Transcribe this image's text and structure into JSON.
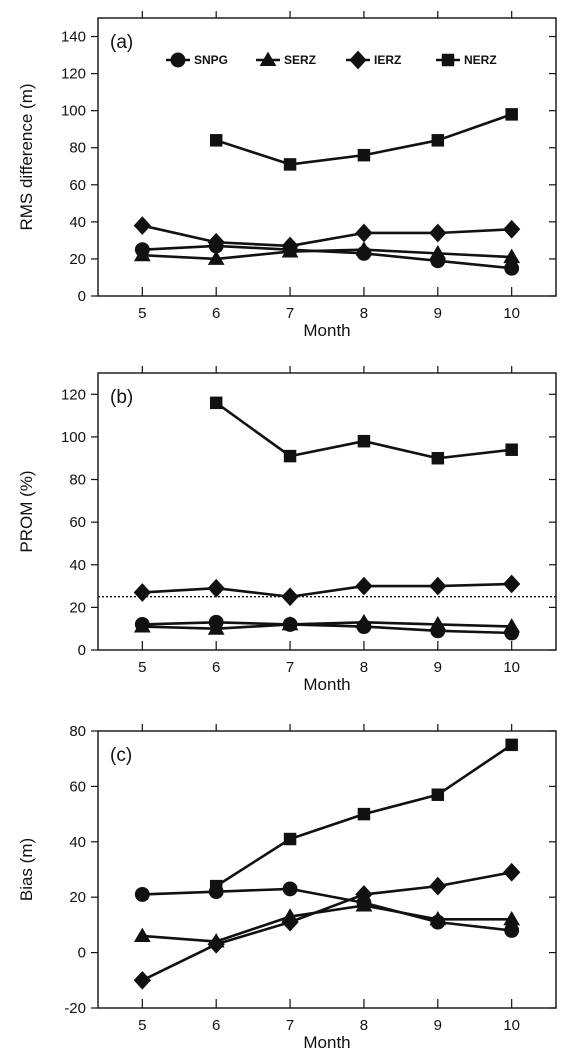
{
  "chart_data": [
    {
      "type": "line",
      "panel_label": "(a)",
      "xlabel": "Month",
      "ylabel": "RMS difference (m)",
      "xlim": [
        4.4,
        10.6
      ],
      "ylim": [
        0,
        150
      ],
      "xticks": [
        5,
        6,
        7,
        8,
        9,
        10
      ],
      "yticks": [
        0,
        20,
        40,
        60,
        80,
        100,
        120,
        140
      ],
      "grid": false,
      "legend": "top",
      "series": [
        {
          "name": "SNPG",
          "marker": "circle",
          "x": [
            5,
            6,
            7,
            8,
            9,
            10
          ],
          "values": [
            25,
            27,
            25,
            23,
            19,
            15
          ]
        },
        {
          "name": "SERZ",
          "marker": "triangle",
          "x": [
            5,
            6,
            7,
            8,
            9,
            10
          ],
          "values": [
            22,
            20,
            24,
            25,
            23,
            21
          ]
        },
        {
          "name": "IERZ",
          "marker": "diamond",
          "x": [
            5,
            6,
            7,
            8,
            9,
            10
          ],
          "values": [
            38,
            29,
            27,
            34,
            34,
            36
          ]
        },
        {
          "name": "NERZ",
          "marker": "square",
          "x": [
            6,
            7,
            8,
            9,
            10
          ],
          "values": [
            84,
            71,
            76,
            84,
            98
          ]
        }
      ]
    },
    {
      "type": "line",
      "panel_label": "(b)",
      "xlabel": "Month",
      "ylabel": "PROM (%)",
      "xlim": [
        4.4,
        10.6
      ],
      "ylim": [
        0,
        130
      ],
      "xticks": [
        5,
        6,
        7,
        8,
        9,
        10
      ],
      "yticks": [
        0,
        20,
        40,
        60,
        80,
        100,
        120
      ],
      "grid": false,
      "reference_line": 25,
      "series": [
        {
          "marker": "circle",
          "x": [
            5,
            6,
            7,
            8,
            9,
            10
          ],
          "values": [
            12,
            13,
            12,
            11,
            9,
            8
          ]
        },
        {
          "marker": "triangle",
          "x": [
            5,
            6,
            7,
            8,
            9,
            10
          ],
          "values": [
            11,
            10,
            12,
            13,
            12,
            11
          ]
        },
        {
          "marker": "diamond",
          "x": [
            5,
            6,
            7,
            8,
            9,
            10
          ],
          "values": [
            27,
            29,
            25,
            30,
            30,
            31
          ]
        },
        {
          "marker": "square",
          "x": [
            6,
            7,
            8,
            9,
            10
          ],
          "values": [
            116,
            91,
            98,
            90,
            94
          ]
        }
      ]
    },
    {
      "type": "line",
      "panel_label": "(c)",
      "xlabel": "Month",
      "ylabel": "Bias (m)",
      "xlim": [
        4.4,
        10.6
      ],
      "ylim": [
        -20,
        80
      ],
      "xticks": [
        5,
        6,
        7,
        8,
        9,
        10
      ],
      "yticks": [
        -20,
        0,
        20,
        40,
        60,
        80
      ],
      "grid": false,
      "series": [
        {
          "marker": "circle",
          "x": [
            5,
            6,
            7,
            8,
            9,
            10
          ],
          "values": [
            21,
            22,
            23,
            18,
            11,
            8
          ]
        },
        {
          "marker": "triangle",
          "x": [
            5,
            6,
            7,
            8,
            9,
            10
          ],
          "values": [
            6,
            4,
            13,
            17,
            12,
            12
          ]
        },
        {
          "marker": "diamond",
          "x": [
            5,
            6,
            7,
            8,
            9,
            10
          ],
          "values": [
            -10,
            3,
            11,
            21,
            24,
            29
          ]
        },
        {
          "marker": "square",
          "x": [
            6,
            7,
            8,
            9,
            10
          ],
          "values": [
            24,
            41,
            50,
            57,
            75
          ]
        }
      ]
    }
  ]
}
